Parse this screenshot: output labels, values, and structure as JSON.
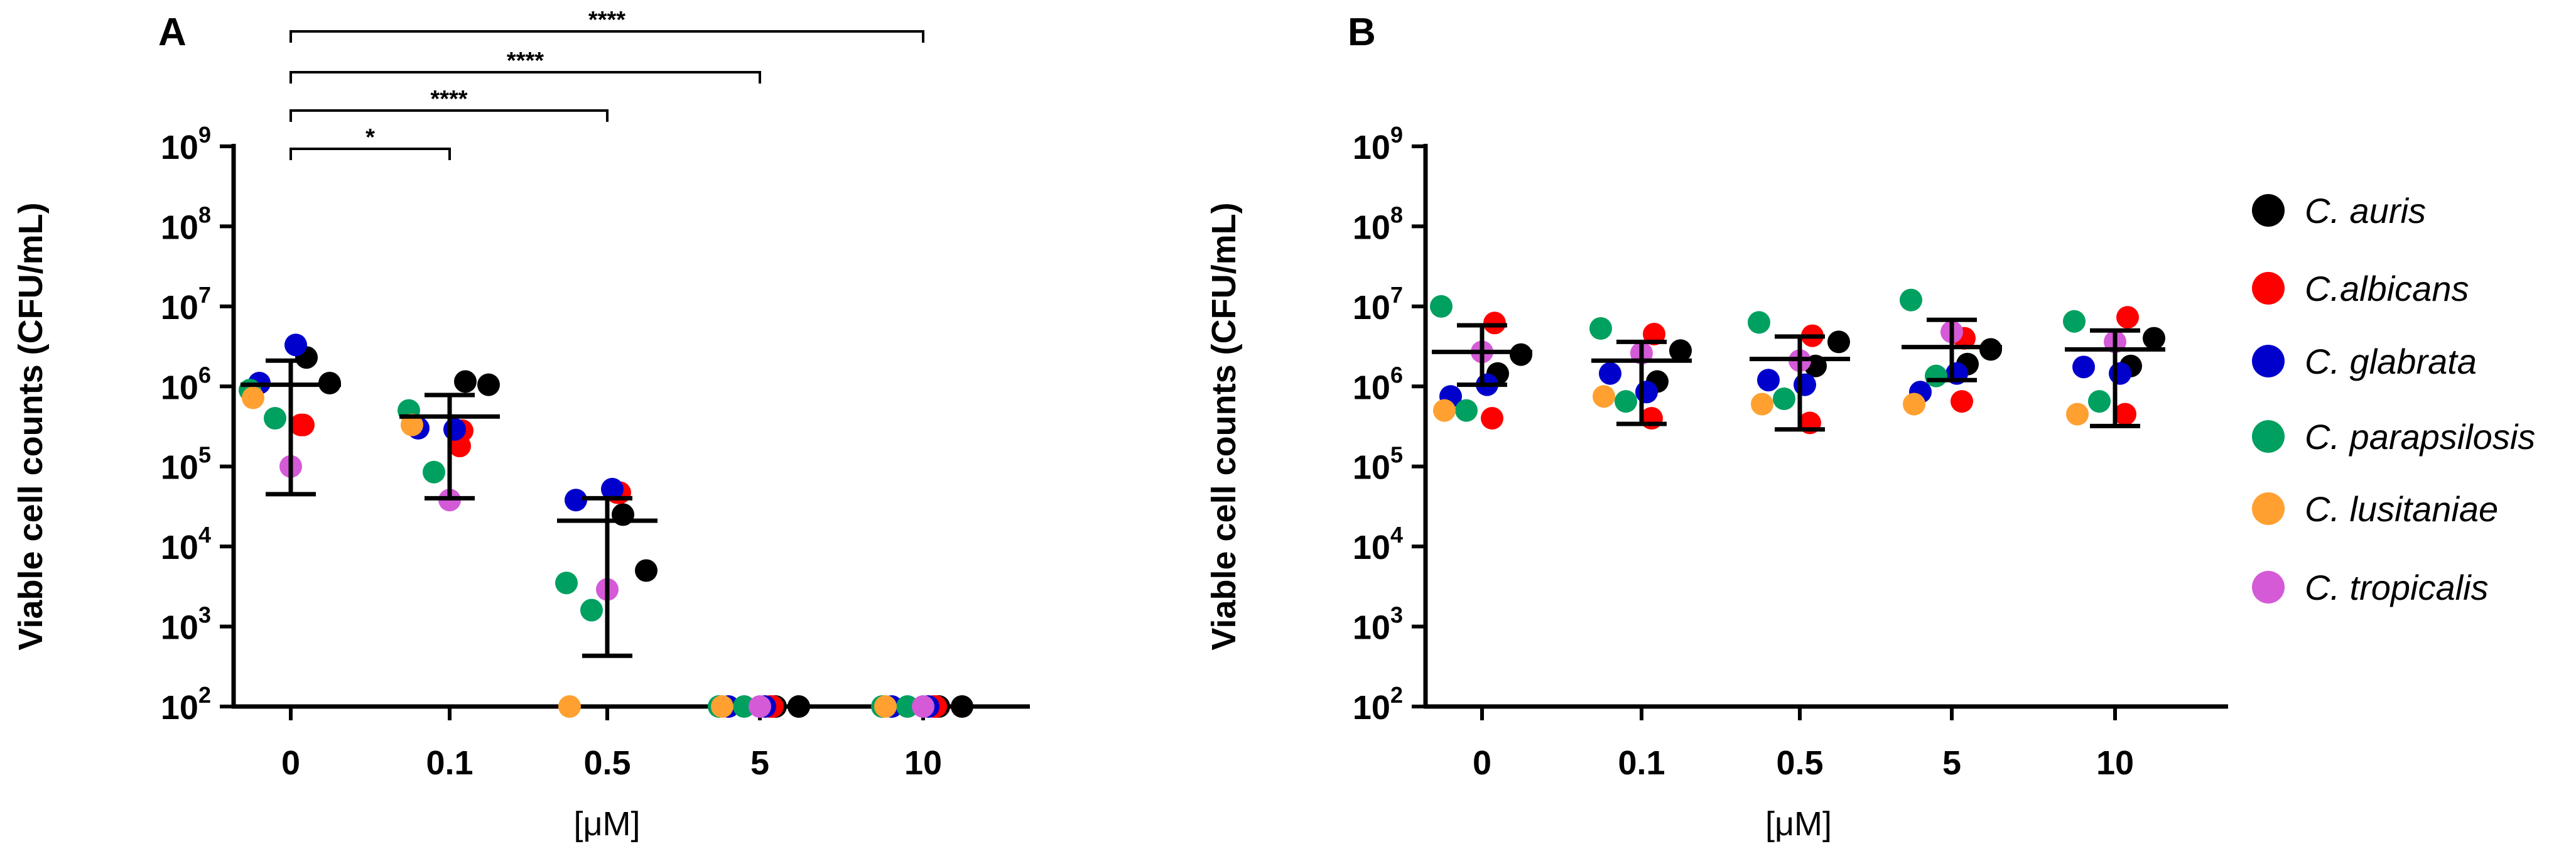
{
  "colors": {
    "C. auris": "#000000",
    "C.albicans": "#ff0000",
    "C. glabrata": "#0000cc",
    "C. parapsilosis": "#00a060",
    "C. lusitaniae": "#ffa030",
    "C. tropicalis": "#d45ad8"
  },
  "legend": [
    "C. auris",
    "C.albicans",
    "C. glabrata",
    "C. parapsilosis",
    "C. lusitaniae",
    "C. tropicalis"
  ],
  "chart_data": [
    {
      "type": "scatter",
      "panel": "A",
      "title": "",
      "xlabel": "[μM]",
      "ylabel": "Viable cell counts (CFU/mL)",
      "yscale": "log",
      "ylim": [
        100,
        1000000000
      ],
      "ytick_base": "10",
      "ytick_exponents": [
        "2",
        "3",
        "4",
        "5",
        "6",
        "7",
        "8",
        "9"
      ],
      "categories": [
        "0",
        "0.1",
        "0.5",
        "5",
        "10"
      ],
      "series": [
        {
          "name": "C. auris",
          "values": [
            [
              2300000,
              1100000
            ],
            [
              1150000,
              1050000
            ],
            [
              25000,
              5000
            ],
            [
              100,
              100
            ],
            [
              100,
              100
            ]
          ]
        },
        {
          "name": "C.albicans",
          "values": [
            [
              330000,
              330000
            ],
            [
              280000,
              180000
            ],
            [
              47000,
              47000
            ],
            [
              100,
              100
            ],
            [
              100,
              100
            ]
          ]
        },
        {
          "name": "C. glabrata",
          "values": [
            [
              3300000,
              1100000
            ],
            [
              290000,
              300000
            ],
            [
              52000,
              38000
            ],
            [
              100,
              100
            ],
            [
              100,
              100
            ]
          ]
        },
        {
          "name": "C. parapsilosis",
          "values": [
            [
              900000,
              400000
            ],
            [
              500000,
              85000
            ],
            [
              3500,
              1600
            ],
            [
              100,
              100
            ],
            [
              100,
              100
            ]
          ]
        },
        {
          "name": "C. lusitaniae",
          "values": [
            [
              720000
            ],
            [
              330000
            ],
            [
              100
            ],
            [
              100
            ],
            [
              100
            ]
          ]
        },
        {
          "name": "C. tropicalis",
          "values": [
            [
              100000
            ],
            [
              38000
            ],
            [
              2900
            ],
            [
              100
            ],
            [
              100
            ]
          ]
        }
      ],
      "summary": [
        {
          "category": "0",
          "mean": 1050000,
          "low": 45000,
          "high": 2100000
        },
        {
          "category": "0.1",
          "mean": 420000,
          "low": 40000,
          "high": 780000
        },
        {
          "category": "0.5",
          "mean": 21000,
          "low": 430,
          "high": 40000
        },
        {
          "category": "5",
          "mean": 100,
          "low": 100,
          "high": 100
        },
        {
          "category": "10",
          "mean": 100,
          "low": 100,
          "high": 100
        }
      ],
      "significance": [
        {
          "from": "0",
          "to": "0.1",
          "label": "*"
        },
        {
          "from": "0",
          "to": "0.5",
          "label": "****"
        },
        {
          "from": "0",
          "to": "5",
          "label": "****"
        },
        {
          "from": "0",
          "to": "10",
          "label": "****"
        }
      ]
    },
    {
      "type": "scatter",
      "panel": "B",
      "title": "",
      "xlabel": "[μM]",
      "ylabel": "Viable cell counts (CFU/mL)",
      "yscale": "log",
      "ylim": [
        100,
        1000000000
      ],
      "ytick_base": "10",
      "ytick_exponents": [
        "2",
        "3",
        "4",
        "5",
        "6",
        "7",
        "8",
        "9"
      ],
      "categories": [
        "0",
        "0.1",
        "0.5",
        "5",
        "10"
      ],
      "series": [
        {
          "name": "C. auris",
          "values": [
            [
              1450000,
              2500000
            ],
            [
              1150000,
              2800000
            ],
            [
              1800000,
              3600000
            ],
            [
              1900000,
              2900000
            ],
            [
              1800000,
              4000000
            ]
          ]
        },
        {
          "name": "C.albicans",
          "values": [
            [
              6200000,
              400000
            ],
            [
              4500000,
              400000
            ],
            [
              4300000,
              350000
            ],
            [
              4000000,
              650000
            ],
            [
              7300000,
              450000
            ]
          ]
        },
        {
          "name": "C. glabrata",
          "values": [
            [
              1050000,
              750000
            ],
            [
              850000,
              1450000
            ],
            [
              1050000,
              1200000
            ],
            [
              1450000,
              850000
            ],
            [
              1450000,
              1750000
            ]
          ]
        },
        {
          "name": "C. parapsilosis",
          "values": [
            [
              10000000,
              500000
            ],
            [
              5300000,
              650000
            ],
            [
              6300000,
              700000
            ],
            [
              12000000,
              1350000
            ],
            [
              6500000,
              650000
            ]
          ]
        },
        {
          "name": "C. lusitaniae",
          "values": [
            [
              500000
            ],
            [
              750000
            ],
            [
              600000
            ],
            [
              600000
            ],
            [
              450000
            ]
          ]
        },
        {
          "name": "C. tropicalis",
          "values": [
            [
              2700000
            ],
            [
              2600000
            ],
            [
              2100000
            ],
            [
              4800000
            ],
            [
              3600000
            ]
          ]
        }
      ],
      "summary": [
        {
          "category": "0",
          "mean": 2700000,
          "low": 1050000,
          "high": 5800000
        },
        {
          "category": "0.1",
          "mean": 2100000,
          "low": 340000,
          "high": 3600000
        },
        {
          "category": "0.5",
          "mean": 2200000,
          "low": 290000,
          "high": 4200000
        },
        {
          "category": "5",
          "mean": 3100000,
          "low": 1200000,
          "high": 6800000
        },
        {
          "category": "10",
          "mean": 2900000,
          "low": 320000,
          "high": 5000000
        }
      ],
      "significance": []
    }
  ]
}
